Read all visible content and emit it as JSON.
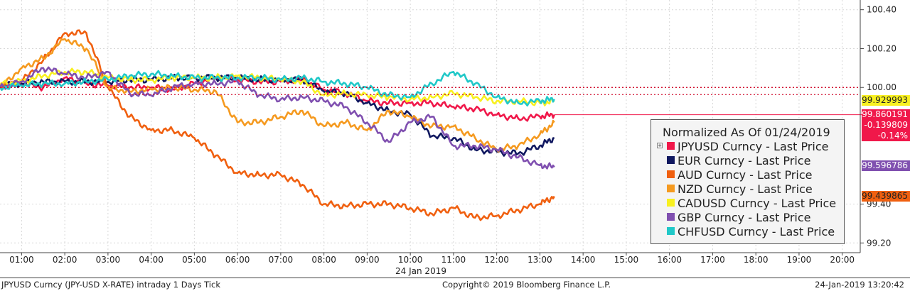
{
  "chart_data": {
    "type": "line",
    "title": "Normalized As Of 01/24/2019",
    "date_label": "24 Jan 2019",
    "x_ticks": [
      "01:00",
      "02:00",
      "03:00",
      "04:00",
      "05:00",
      "06:00",
      "07:00",
      "08:00",
      "09:00",
      "10:00",
      "11:00",
      "12:00",
      "13:00",
      "14:00",
      "15:00",
      "16:00",
      "17:00",
      "18:00",
      "19:00",
      "20:00"
    ],
    "y_ticks": [
      "100.40",
      "100.20",
      "100.00",
      "99.40",
      "99.20"
    ],
    "ylim": [
      99.15,
      100.45
    ],
    "xlim": [
      "00:30",
      "20:25"
    ],
    "reference_level": 100.0,
    "grid": true,
    "legend_position": "right",
    "series": [
      {
        "name": "JPYUSD Curncy - Last Price",
        "color": "#f0184a",
        "x": [
          "00:30",
          "01:00",
          "01:30",
          "02:00",
          "02:30",
          "03:00",
          "03:30",
          "04:00",
          "04:30",
          "05:00",
          "05:30",
          "06:00",
          "06:30",
          "07:00",
          "07:30",
          "08:00",
          "08:30",
          "09:00",
          "09:30",
          "10:00",
          "10:30",
          "11:00",
          "11:30",
          "12:00",
          "12:30",
          "13:00",
          "13:20"
        ],
        "y": [
          100.01,
          100.02,
          100.0,
          100.05,
          100.02,
          100.01,
          100.0,
          100.0,
          99.99,
          100.02,
          100.05,
          100.04,
          100.03,
          100.03,
          100.04,
          99.99,
          99.97,
          99.93,
          99.92,
          99.92,
          99.92,
          99.9,
          99.89,
          99.86,
          99.84,
          99.85,
          99.86
        ]
      },
      {
        "name": "EUR Curncy - Last Price",
        "color": "#101860",
        "x": [
          "00:30",
          "01:00",
          "01:30",
          "02:00",
          "02:30",
          "03:00",
          "03:30",
          "04:00",
          "04:30",
          "05:00",
          "05:30",
          "06:00",
          "06:30",
          "07:00",
          "07:30",
          "08:00",
          "08:30",
          "09:00",
          "09:30",
          "10:00",
          "10:30",
          "11:00",
          "11:30",
          "12:00",
          "12:30",
          "13:00",
          "13:20"
        ],
        "y": [
          100.01,
          100.02,
          100.03,
          100.03,
          100.03,
          100.03,
          100.04,
          100.04,
          100.05,
          100.05,
          100.05,
          100.05,
          100.04,
          100.04,
          100.04,
          99.98,
          99.97,
          99.92,
          99.88,
          99.86,
          99.75,
          99.74,
          99.68,
          99.67,
          99.66,
          99.7,
          99.74
        ]
      },
      {
        "name": "AUD Curncy - Last Price",
        "color": "#f06010",
        "x": [
          "00:30",
          "01:00",
          "01:30",
          "02:00",
          "02:30",
          "03:00",
          "03:30",
          "04:00",
          "04:30",
          "05:00",
          "05:30",
          "06:00",
          "06:30",
          "07:00",
          "07:30",
          "08:00",
          "08:30",
          "09:00",
          "09:30",
          "10:00",
          "10:30",
          "11:00",
          "11:30",
          "12:00",
          "12:30",
          "13:00",
          "13:20"
        ],
        "y": [
          100.0,
          100.03,
          100.14,
          100.28,
          100.28,
          100.0,
          99.85,
          99.78,
          99.78,
          99.74,
          99.65,
          99.56,
          99.55,
          99.55,
          99.5,
          99.4,
          99.39,
          99.4,
          99.4,
          99.38,
          99.35,
          99.38,
          99.33,
          99.34,
          99.37,
          99.4,
          99.44
        ]
      },
      {
        "name": "NZD Curncy - Last Price",
        "color": "#f59a20",
        "x": [
          "00:30",
          "01:00",
          "01:30",
          "02:00",
          "02:30",
          "03:00",
          "03:30",
          "04:00",
          "04:30",
          "05:00",
          "05:30",
          "06:00",
          "06:30",
          "07:00",
          "07:30",
          "08:00",
          "08:30",
          "09:00",
          "09:30",
          "10:00",
          "10:30",
          "11:00",
          "11:30",
          "12:00",
          "12:30",
          "13:00",
          "13:20"
        ],
        "y": [
          100.0,
          100.1,
          100.15,
          100.25,
          100.2,
          100.0,
          99.98,
          99.99,
          100.0,
          99.99,
          99.98,
          99.82,
          99.82,
          99.85,
          99.88,
          99.8,
          99.82,
          99.78,
          99.88,
          99.85,
          99.8,
          99.8,
          99.74,
          99.68,
          99.7,
          99.76,
          99.82
        ]
      },
      {
        "name": "CADUSD Curncy - Last Price",
        "color": "#f8f020",
        "x": [
          "00:30",
          "01:00",
          "01:30",
          "02:00",
          "02:30",
          "03:00",
          "03:30",
          "04:00",
          "04:30",
          "05:00",
          "05:30",
          "06:00",
          "06:30",
          "07:00",
          "07:30",
          "08:00",
          "08:30",
          "09:00",
          "09:30",
          "10:00",
          "10:30",
          "11:00",
          "11:30",
          "12:00",
          "12:30",
          "13:00",
          "13:20"
        ],
        "y": [
          100.02,
          100.03,
          100.06,
          100.08,
          100.08,
          100.05,
          100.04,
          100.04,
          100.05,
          100.05,
          100.05,
          100.06,
          100.05,
          100.04,
          100.03,
          99.96,
          99.97,
          99.96,
          99.95,
          99.94,
          99.95,
          99.97,
          99.95,
          99.93,
          99.93,
          99.92,
          99.93
        ]
      },
      {
        "name": "GBP Curncy - Last Price",
        "color": "#8050b0",
        "x": [
          "00:30",
          "01:00",
          "01:30",
          "02:00",
          "02:30",
          "03:00",
          "03:30",
          "04:00",
          "04:30",
          "05:00",
          "05:30",
          "06:00",
          "06:30",
          "07:00",
          "07:30",
          "08:00",
          "08:30",
          "09:00",
          "09:30",
          "10:00",
          "10:30",
          "11:00",
          "11:30",
          "12:00",
          "12:30",
          "13:00",
          "13:20"
        ],
        "y": [
          100.0,
          100.03,
          100.1,
          100.07,
          100.05,
          100.08,
          99.97,
          99.96,
          100.0,
          100.02,
          100.02,
          100.03,
          99.96,
          99.94,
          99.95,
          99.93,
          99.9,
          99.82,
          99.72,
          99.82,
          99.85,
          99.7,
          99.7,
          99.68,
          99.64,
          99.6,
          99.59
        ]
      },
      {
        "name": "CHFUSD Curncy - Last Price",
        "color": "#20c8c8",
        "x": [
          "00:30",
          "01:00",
          "01:30",
          "02:00",
          "02:30",
          "03:00",
          "03:30",
          "04:00",
          "04:30",
          "05:00",
          "05:30",
          "06:00",
          "06:30",
          "07:00",
          "07:30",
          "08:00",
          "08:30",
          "09:00",
          "09:30",
          "10:00",
          "10:30",
          "11:00",
          "11:30",
          "12:00",
          "12:30",
          "13:00",
          "13:20"
        ],
        "y": [
          100.0,
          100.01,
          100.02,
          100.02,
          100.03,
          100.04,
          100.06,
          100.07,
          100.06,
          100.05,
          100.05,
          100.05,
          100.05,
          100.04,
          100.05,
          100.03,
          100.02,
          100.0,
          99.96,
          99.95,
          100.02,
          100.08,
          100.02,
          99.95,
          99.92,
          99.93,
          99.94
        ]
      }
    ],
    "value_tags": [
      {
        "text": "99.929993",
        "value": 99.929993,
        "bg": "#f8f020",
        "fg": "#222222"
      },
      {
        "text": "99.860191",
        "value": 99.860191,
        "bg": "#f0184a",
        "fg": "#ffffff",
        "sub": [
          "-0.139809",
          "-0.14%"
        ]
      },
      {
        "text": "99.596786",
        "value": 99.596786,
        "bg": "#8050b0",
        "fg": "#ffffff"
      },
      {
        "text": "99.439865",
        "value": 99.439865,
        "bg": "#f06010",
        "fg": "#222222"
      }
    ]
  },
  "footer": {
    "left": "JPYUSD Curncy (JPY-USD X-RATE) intraday 1 Days  Tick",
    "center": "Copyright© 2019 Bloomberg Finance L.P.",
    "right": "24-Jan-2019 13:20:42"
  }
}
